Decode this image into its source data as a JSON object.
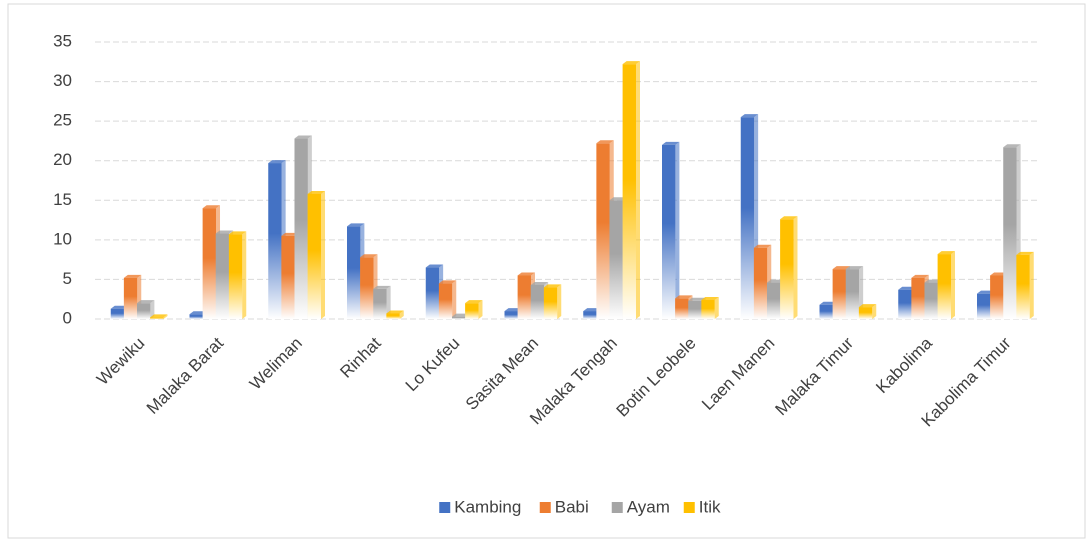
{
  "chart_data": {
    "type": "bar",
    "categories": [
      "Wewiku",
      "Malaka Barat",
      "Weliman",
      "Rinhat",
      "Lo Kufeu",
      "Sasita Mean",
      "Malaka Tengah",
      "Botin Leobele",
      "Laen Manen",
      "Malaka Timur",
      "Kabolima",
      "Kabolima Timur"
    ],
    "series": [
      {
        "name": "Kambing",
        "color": "#4472c4",
        "values": [
          1.3,
          0.6,
          19.7,
          11.7,
          6.5,
          1,
          1,
          22,
          25.5,
          1.8,
          3.7,
          3.2
        ]
      },
      {
        "name": "Babi",
        "color": "#ed7d31",
        "values": [
          5.2,
          14,
          10.5,
          7.8,
          4.5,
          5.5,
          22.2,
          2.6,
          9,
          6.3,
          5.2,
          5.5
        ]
      },
      {
        "name": "Ayam",
        "color": "#a5a5a5",
        "values": [
          2,
          10.8,
          22.8,
          3.8,
          0.3,
          4.3,
          15,
          2.3,
          4.6,
          6.3,
          4.6,
          21.7
        ]
      },
      {
        "name": "Itik",
        "color": "#ffc000",
        "values": [
          0.2,
          10.7,
          15.8,
          0.7,
          2,
          4,
          32.2,
          2.4,
          12.6,
          1.5,
          8.2,
          8.1
        ]
      }
    ],
    "ylim": [
      0,
      35
    ],
    "yticks": [
      0,
      5,
      10,
      15,
      20,
      25,
      30,
      35
    ],
    "grid": true,
    "legend": "bottom"
  }
}
